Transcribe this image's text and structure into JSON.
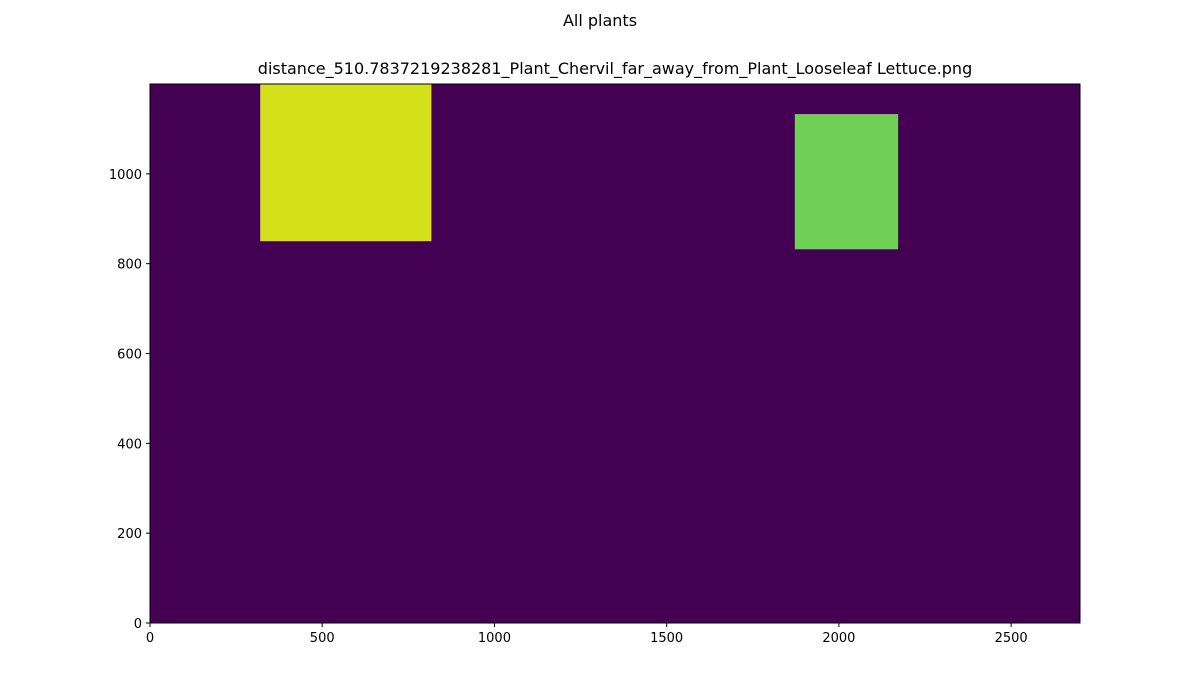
{
  "figure": {
    "suptitle": "All plants"
  },
  "chart_data": {
    "type": "heatmap",
    "title": "distance_510.7837219238281_Plant_Chervil_far_away_from_Plant_Looseleaf Lettuce.png",
    "xlabel": "",
    "ylabel": "",
    "xlim": [
      0,
      2700
    ],
    "ylim": [
      0,
      1200
    ],
    "x_ticks": [
      0,
      500,
      1000,
      1500,
      2000,
      2500
    ],
    "y_ticks": [
      0,
      200,
      400,
      600,
      800,
      1000
    ],
    "grid": false,
    "background_color": "#440154",
    "regions": [
      {
        "x0": 320,
        "x1": 817,
        "y0": 850,
        "y1": 1200,
        "color": "#d4e11a"
      },
      {
        "x0": 1872,
        "x1": 2172,
        "y0": 832,
        "y1": 1133,
        "color": "#70cf57"
      }
    ]
  }
}
